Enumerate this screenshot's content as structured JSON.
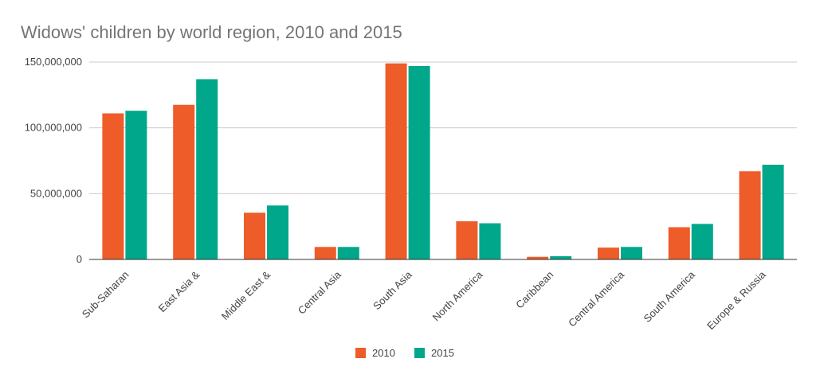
{
  "chart_data": {
    "type": "bar",
    "title": "Widows' children by world region, 2010 and 2015",
    "xlabel": "",
    "ylabel": "",
    "categories": [
      "Sub-Saharan",
      "East Asia &",
      "Middle East &",
      "Central Asia",
      "South Asia",
      "North America",
      "Caribbean",
      "Central America",
      "South America",
      "Europe & Russia"
    ],
    "series": [
      {
        "name": "2010",
        "color": "#ee5c2a",
        "values": [
          111000000,
          117500000,
          35500000,
          9500000,
          149000000,
          29000000,
          2000000,
          9000000,
          24500000,
          67000000
        ]
      },
      {
        "name": "2015",
        "color": "#00a78a",
        "values": [
          113000000,
          137000000,
          41000000,
          9500000,
          147000000,
          27500000,
          2500000,
          9500000,
          27000000,
          72000000
        ]
      }
    ],
    "ylim": [
      0,
      150000000
    ],
    "yticks": [
      0,
      50000000,
      100000000,
      150000000
    ],
    "ytick_labels": [
      "0",
      "50,000,000",
      "100,000,000",
      "150,000,000"
    ],
    "grid": true,
    "legend_position": "bottom"
  }
}
